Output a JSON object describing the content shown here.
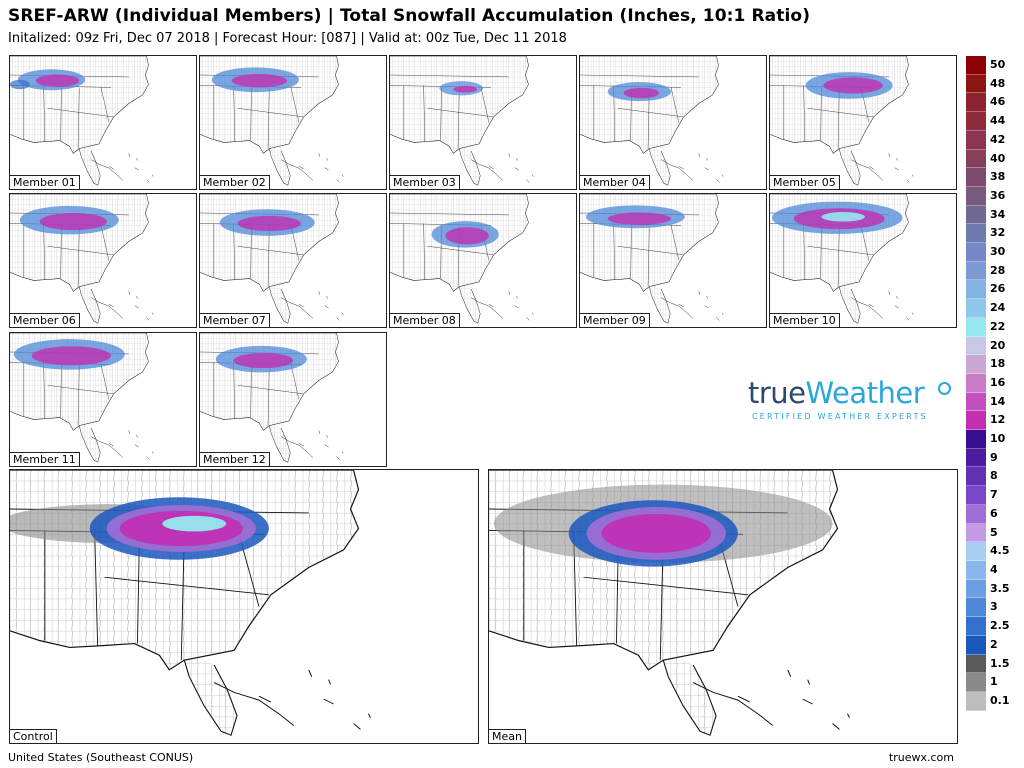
{
  "header": {
    "title": "SREF-ARW (Individual Members) | Total Snowfall Accumulation (Inches, 10:1 Ratio)",
    "subtitle": "Initalized: 09z Fri, Dec 07 2018 | Forecast Hour: [087] | Valid at: 00z Tue, Dec 11 2018"
  },
  "panels": {
    "m01": "Member 01",
    "m02": "Member 02",
    "m03": "Member 03",
    "m04": "Member 04",
    "m05": "Member 05",
    "m06": "Member 06",
    "m07": "Member 07",
    "m08": "Member 08",
    "m09": "Member 09",
    "m10": "Member 10",
    "m11": "Member 11",
    "m12": "Member 12",
    "control": "Control",
    "mean": "Mean"
  },
  "legend": {
    "labels": [
      "50",
      "48",
      "46",
      "44",
      "42",
      "40",
      "38",
      "36",
      "34",
      "32",
      "30",
      "28",
      "26",
      "24",
      "22",
      "20",
      "18",
      "16",
      "14",
      "12",
      "10",
      "9",
      "8",
      "7",
      "6",
      "5",
      "4.5",
      "4",
      "3.5",
      "3",
      "2.5",
      "2",
      "1.5",
      "1",
      "0.1"
    ],
    "colors": [
      "#8b0000",
      "#8b1414",
      "#8e2330",
      "#8e2c3e",
      "#8b3550",
      "#86405e",
      "#7e4b6d",
      "#765a80",
      "#6e6a93",
      "#6f7ab0",
      "#7589c8",
      "#7c9ad6",
      "#83b2e3",
      "#8ec8ea",
      "#96e8f0",
      "#c8c8e6",
      "#cba7d6",
      "#c97cc6",
      "#c64fbf",
      "#c12fb2",
      "#3a0c8e",
      "#4d1aa0",
      "#6230b5",
      "#7b46c5",
      "#a06fd6",
      "#c49ae6",
      "#a8cff2",
      "#87b7ec",
      "#6aa0e2",
      "#4e88d8",
      "#3270cc",
      "#1a57bf",
      "#595959",
      "#8a8a8a",
      "#bdbdbd"
    ]
  },
  "logo": {
    "name_part1": "true",
    "name_part2": "Weather",
    "tagline": "CERTIFIED WEATHER EXPERTS"
  },
  "footer": {
    "region": "United States (Southeast CONUS)",
    "site": "truewx.com"
  }
}
